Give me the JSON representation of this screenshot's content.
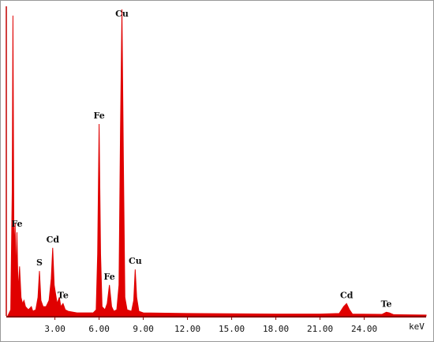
{
  "chart_data": {
    "type": "area",
    "x_label": "keV",
    "color": "#e00000",
    "x": [
      -0.2,
      0.0,
      0.1,
      0.15,
      0.22,
      0.3,
      0.35,
      0.42,
      0.5,
      0.6,
      0.7,
      0.8,
      0.9,
      1.0,
      1.2,
      1.4,
      1.5,
      1.7,
      1.85,
      1.95,
      2.05,
      2.2,
      2.4,
      2.6,
      2.75,
      2.85,
      2.95,
      3.05,
      3.15,
      3.3,
      3.4,
      3.55,
      3.7,
      3.9,
      4.5,
      5.0,
      5.6,
      5.8,
      5.9,
      6.0,
      6.1,
      6.2,
      6.4,
      6.55,
      6.7,
      6.85,
      7.0,
      7.2,
      7.35,
      7.45,
      7.55,
      7.65,
      7.75,
      7.9,
      8.2,
      8.35,
      8.45,
      8.55,
      8.7,
      9.0,
      12.0,
      15.0,
      18.0,
      21.0,
      22.3,
      22.6,
      22.8,
      23.0,
      23.2,
      25.2,
      25.5,
      25.7,
      26.0,
      28.2
    ],
    "values": [
      0,
      2,
      40,
      97,
      20,
      30,
      12,
      27,
      8,
      16,
      6,
      4,
      5,
      3,
      2,
      3,
      1.5,
      2,
      6,
      14.5,
      5,
      3,
      3,
      5,
      12,
      22,
      10,
      7,
      4,
      6,
      3,
      4,
      2,
      1.5,
      1,
      1,
      1,
      2,
      20,
      62,
      20,
      3,
      2,
      4,
      10,
      3,
      1.5,
      2,
      10,
      60,
      99,
      50,
      6,
      2,
      1.5,
      5,
      15,
      6,
      1.5,
      1,
      0.8,
      0.7,
      0.6,
      0.6,
      0.8,
      3,
      4,
      2,
      0.6,
      0.5,
      1.2,
      1,
      0.4,
      0.3
    ],
    "xlim": [
      -0.3,
      28.2
    ],
    "ylim": [
      0,
      100
    ],
    "xticks": [
      {
        "value": 3,
        "label": "3.00"
      },
      {
        "value": 6,
        "label": "6.00"
      },
      {
        "value": 9,
        "label": "9.00"
      },
      {
        "value": 12,
        "label": "12.00"
      },
      {
        "value": 15,
        "label": "15.00"
      },
      {
        "value": 18,
        "label": "18.00"
      },
      {
        "value": 21,
        "label": "21.00"
      },
      {
        "value": 24,
        "label": "24.00"
      }
    ],
    "annotations": [
      {
        "text": "Fe",
        "x": 0.42,
        "y": 27
      },
      {
        "text": "S",
        "x": 1.95,
        "y": 14.5
      },
      {
        "text": "Cd",
        "x": 2.85,
        "y": 22
      },
      {
        "text": "Te",
        "x": 3.55,
        "y": 4
      },
      {
        "text": "Fe",
        "x": 6.0,
        "y": 62
      },
      {
        "text": "Fe",
        "x": 6.7,
        "y": 10
      },
      {
        "text": "Cu",
        "x": 7.55,
        "y": 99
      },
      {
        "text": "Cu",
        "x": 8.45,
        "y": 15
      },
      {
        "text": "Cd",
        "x": 22.8,
        "y": 4
      },
      {
        "text": "Te",
        "x": 25.5,
        "y": 1.2
      }
    ]
  }
}
